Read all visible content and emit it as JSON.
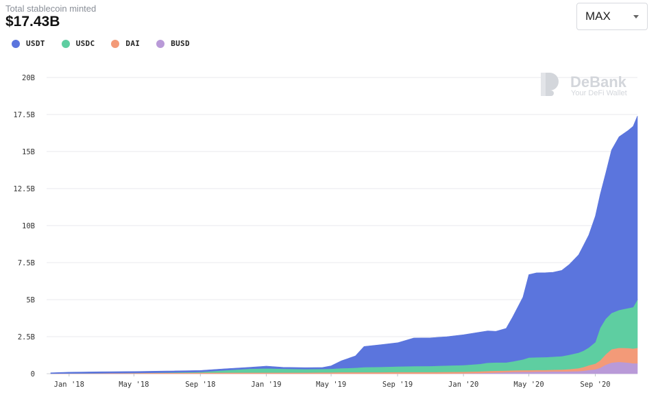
{
  "header": {
    "label": "Total stablecoin minted",
    "value": "$17.43B"
  },
  "range_select": {
    "selected": "MAX"
  },
  "watermark": {
    "title": "DeBank",
    "subtitle": "Your DeFi Wallet"
  },
  "colors": {
    "USDT": "#5b75dd",
    "USDC": "#5ecea1",
    "DAI": "#f39a78",
    "BUSD": "#b99ad8",
    "grid": "#e8e9ec"
  },
  "chart_data": {
    "type": "area",
    "stacked": true,
    "title": "",
    "xlabel": "",
    "ylabel": "",
    "ylim": [
      0,
      20
    ],
    "y_unit": "B",
    "y_ticks": [
      "0",
      "2.5B",
      "5B",
      "7.5B",
      "10B",
      "12.5B",
      "15B",
      "17.5B",
      "20B"
    ],
    "y_tick_values": [
      0,
      2.5,
      5,
      7.5,
      10,
      12.5,
      15,
      17.5,
      20
    ],
    "x_range": [
      "2017-11-28",
      "2020-11-18"
    ],
    "x_ticks": [
      {
        "date": "2018-01-01",
        "label": "Jan '18"
      },
      {
        "date": "2018-05-01",
        "label": "May '18"
      },
      {
        "date": "2018-09-01",
        "label": "Sep '18"
      },
      {
        "date": "2019-01-01",
        "label": "Jan '19"
      },
      {
        "date": "2019-05-01",
        "label": "May '19"
      },
      {
        "date": "2019-09-01",
        "label": "Sep '19"
      },
      {
        "date": "2020-01-01",
        "label": "Jan '20"
      },
      {
        "date": "2020-05-01",
        "label": "May '20"
      },
      {
        "date": "2020-09-01",
        "label": "Sep '20"
      }
    ],
    "grid": true,
    "legend_position": "top-left",
    "x": [
      "2017-11-28",
      "2018-01-01",
      "2018-03-01",
      "2018-05-01",
      "2018-07-01",
      "2018-09-01",
      "2018-10-15",
      "2018-12-01",
      "2019-01-01",
      "2019-02-01",
      "2019-03-15",
      "2019-04-15",
      "2019-05-01",
      "2019-05-20",
      "2019-06-15",
      "2019-07-01",
      "2019-08-01",
      "2019-09-01",
      "2019-10-01",
      "2019-11-01",
      "2019-12-01",
      "2020-01-01",
      "2020-02-01",
      "2020-02-15",
      "2020-03-01",
      "2020-03-20",
      "2020-04-01",
      "2020-04-20",
      "2020-05-01",
      "2020-05-15",
      "2020-06-01",
      "2020-06-15",
      "2020-07-01",
      "2020-07-15",
      "2020-08-01",
      "2020-08-10",
      "2020-08-20",
      "2020-09-01",
      "2020-09-10",
      "2020-09-20",
      "2020-10-01",
      "2020-10-15",
      "2020-11-01",
      "2020-11-10",
      "2020-11-18"
    ],
    "series": [
      {
        "name": "BUSD",
        "values": [
          0,
          0,
          0,
          0,
          0,
          0,
          0,
          0,
          0,
          0,
          0,
          0,
          0,
          0,
          0,
          0,
          0,
          0,
          0,
          0,
          0.01,
          0.02,
          0.04,
          0.06,
          0.08,
          0.1,
          0.12,
          0.13,
          0.13,
          0.14,
          0.14,
          0.15,
          0.15,
          0.16,
          0.17,
          0.2,
          0.25,
          0.3,
          0.4,
          0.6,
          0.75,
          0.8,
          0.75,
          0.7,
          0.7
        ]
      },
      {
        "name": "DAI",
        "values": [
          0.01,
          0.02,
          0.03,
          0.05,
          0.06,
          0.07,
          0.08,
          0.08,
          0.08,
          0.08,
          0.08,
          0.09,
          0.09,
          0.1,
          0.1,
          0.1,
          0.1,
          0.11,
          0.11,
          0.11,
          0.11,
          0.11,
          0.12,
          0.12,
          0.12,
          0.11,
          0.11,
          0.11,
          0.11,
          0.11,
          0.11,
          0.12,
          0.13,
          0.15,
          0.2,
          0.25,
          0.32,
          0.38,
          0.5,
          0.7,
          0.9,
          0.95,
          0.98,
          1.0,
          1.05
        ]
      },
      {
        "name": "USDC",
        "values": [
          0,
          0,
          0,
          0,
          0.02,
          0.05,
          0.15,
          0.25,
          0.28,
          0.25,
          0.23,
          0.23,
          0.24,
          0.27,
          0.3,
          0.34,
          0.36,
          0.38,
          0.4,
          0.41,
          0.43,
          0.45,
          0.5,
          0.56,
          0.56,
          0.55,
          0.6,
          0.72,
          0.85,
          0.86,
          0.87,
          0.88,
          0.9,
          0.97,
          1.05,
          1.1,
          1.2,
          1.45,
          2.2,
          2.4,
          2.45,
          2.55,
          2.7,
          2.8,
          3.25
        ]
      },
      {
        "name": "USDT",
        "values": [
          0.05,
          0.08,
          0.1,
          0.1,
          0.1,
          0.1,
          0.1,
          0.1,
          0.15,
          0.1,
          0.1,
          0.1,
          0.2,
          0.5,
          0.8,
          1.4,
          1.5,
          1.6,
          1.9,
          1.9,
          1.95,
          2.05,
          2.15,
          2.15,
          2.1,
          2.3,
          3.0,
          4.2,
          5.6,
          5.7,
          5.7,
          5.7,
          5.8,
          6.1,
          6.6,
          7.1,
          7.6,
          8.5,
          9.0,
          9.8,
          11.0,
          11.7,
          12.0,
          12.2,
          12.4
        ]
      }
    ]
  },
  "legend": {
    "items": [
      {
        "label": "USDT",
        "color": "#5b75dd"
      },
      {
        "label": "USDC",
        "color": "#5ecea1"
      },
      {
        "label": "DAI",
        "color": "#f39a78"
      },
      {
        "label": "BUSD",
        "color": "#b99ad8"
      }
    ]
  }
}
